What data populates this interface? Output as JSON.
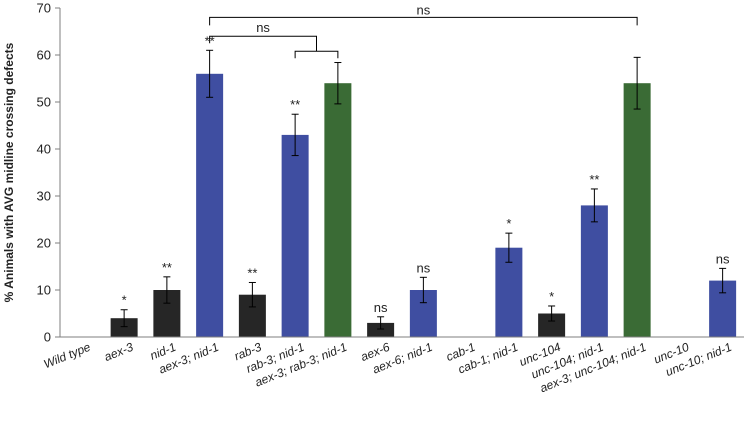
{
  "chart_data": {
    "type": "bar",
    "title": "",
    "xlabel": "",
    "ylabel": "% Animals with AVG midline crossing defects",
    "ylim": [
      0,
      70
    ],
    "yticks": [
      0,
      10,
      20,
      30,
      40,
      50,
      60,
      70
    ],
    "grid": false,
    "categories": [
      "Wild type",
      "aex-3",
      "nid-1",
      "aex-3; nid-1",
      "rab-3",
      "rab-3; nid-1",
      "aex-3; rab-3; nid-1",
      "aex-6",
      "aex-6; nid-1",
      "cab-1",
      "cab-1; nid-1",
      "unc-104",
      "unc-104; nid-1",
      "aex-3; unc-104; nid-1",
      "unc-10",
      "unc-10; nid-1"
    ],
    "values": [
      0,
      4,
      10,
      56,
      9,
      43,
      54,
      3,
      10,
      0,
      19,
      5,
      28,
      54,
      0,
      12
    ],
    "errors": [
      0,
      1.8,
      2.8,
      5.0,
      2.6,
      4.4,
      4.4,
      1.3,
      2.7,
      0,
      3.1,
      1.6,
      3.5,
      5.5,
      0,
      2.6
    ],
    "significance": [
      "",
      "*",
      "**",
      "**",
      "**",
      "**",
      "",
      "ns",
      "ns",
      "",
      "*",
      "*",
      "**",
      "",
      "",
      "ns"
    ],
    "bar_colors": [
      "#262626",
      "#262626",
      "#262626",
      "#3f4ea1",
      "#262626",
      "#3f4ea1",
      "#3a6b35",
      "#262626",
      "#3f4ea1",
      "#262626",
      "#3f4ea1",
      "#262626",
      "#3f4ea1",
      "#3a6b35",
      "#262626",
      "#3f4ea1"
    ],
    "comparisons": [
      {
        "label": "ns",
        "from": 3,
        "to": 13,
        "level": 68
      },
      {
        "label": "ns",
        "from": 3,
        "to": [
          5,
          6
        ],
        "level": 64
      }
    ]
  }
}
